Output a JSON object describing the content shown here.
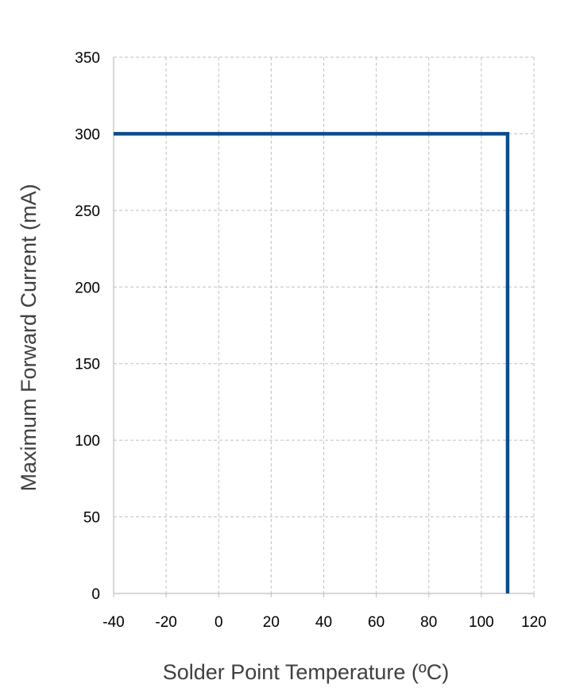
{
  "chart_data": {
    "type": "line",
    "title": "",
    "xlabel": "Solder Point Temperature (ºC)",
    "ylabel": "Maximum Forward Current (mA)",
    "xlim": [
      -40,
      120
    ],
    "ylim": [
      0,
      350
    ],
    "x_ticks": [
      -40,
      -20,
      0,
      20,
      40,
      60,
      80,
      100,
      120
    ],
    "y_ticks": [
      0,
      50,
      100,
      150,
      200,
      250,
      300,
      350
    ],
    "x_tick_labels": [
      "-40",
      "-20",
      "0",
      "20",
      "40",
      "60",
      "80",
      "100",
      "120"
    ],
    "y_tick_labels": [
      "0",
      "50",
      "100",
      "150",
      "200",
      "250",
      "300",
      "350"
    ],
    "grid": true,
    "grid_style": "dashed",
    "legend": false,
    "series": [
      {
        "x": [
          -40,
          110,
          110
        ],
        "y": [
          300,
          300,
          0
        ],
        "color": "#0a4c8c"
      }
    ]
  },
  "colors": {
    "series_line": "#0a4c8c",
    "grid": "#c0c0c0",
    "axis": "#bfbfbf",
    "axis_title": "#404040"
  }
}
